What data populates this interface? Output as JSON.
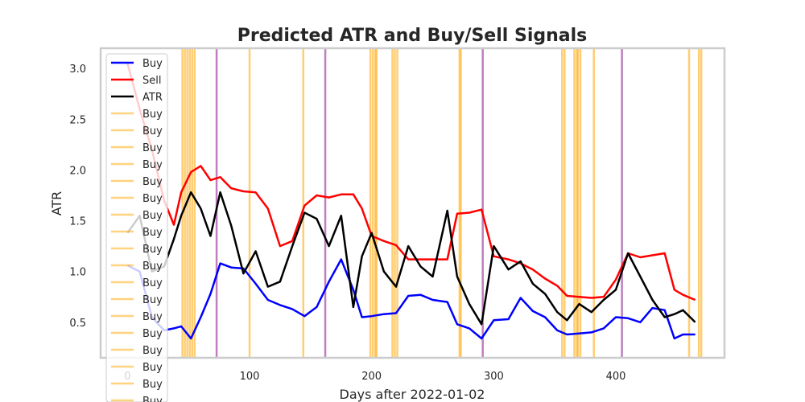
{
  "chart_data": {
    "type": "line",
    "title": "Predicted ATR and Buy/Sell Signals",
    "xlabel": "Days after 2022-01-02",
    "ylabel": "ATR",
    "xlim": [
      -22,
      489
    ],
    "ylim": [
      0.15,
      3.2
    ],
    "x_ticks": [
      0,
      100,
      200,
      300,
      400
    ],
    "y_ticks": [
      0.5,
      1.0,
      1.5,
      2.0,
      2.5,
      3.0
    ],
    "x_tick_labels": [
      "0",
      "100",
      "200",
      "300",
      "400"
    ],
    "y_tick_labels": [
      "0.5",
      "1.0",
      "1.5",
      "2.0",
      "2.5",
      "3.0"
    ],
    "grid": false,
    "legend_position": "upper-left",
    "series": [
      {
        "name": "Buy",
        "color": "#0000ff",
        "x": [
          0,
          10,
          20,
          30,
          38,
          44,
          52,
          60,
          68,
          76,
          85,
          95,
          105,
          115,
          125,
          135,
          145,
          155,
          165,
          175,
          185,
          192,
          200,
          210,
          220,
          230,
          240,
          250,
          262,
          270,
          280,
          290,
          300,
          312,
          322,
          332,
          342,
          352,
          360,
          370,
          380,
          390,
          400,
          410,
          420,
          430,
          440,
          448,
          455,
          465
        ],
        "y": [
          1.06,
          1.0,
          0.55,
          0.42,
          0.44,
          0.46,
          0.34,
          0.55,
          0.78,
          1.08,
          1.04,
          1.03,
          0.88,
          0.72,
          0.67,
          0.63,
          0.56,
          0.65,
          0.9,
          1.12,
          0.82,
          0.55,
          0.56,
          0.58,
          0.59,
          0.76,
          0.77,
          0.72,
          0.7,
          0.48,
          0.44,
          0.34,
          0.52,
          0.53,
          0.74,
          0.61,
          0.55,
          0.42,
          0.38,
          0.39,
          0.4,
          0.44,
          0.55,
          0.54,
          0.5,
          0.64,
          0.62,
          0.34,
          0.38,
          0.38
        ]
      },
      {
        "name": "Sell",
        "color": "#ff0000",
        "x": [
          0,
          10,
          20,
          30,
          38,
          44,
          52,
          60,
          68,
          76,
          85,
          95,
          105,
          115,
          125,
          135,
          145,
          155,
          165,
          175,
          185,
          192,
          200,
          210,
          220,
          230,
          240,
          250,
          262,
          270,
          280,
          290,
          300,
          312,
          322,
          332,
          342,
          352,
          360,
          370,
          380,
          390,
          400,
          410,
          420,
          430,
          440,
          448,
          455,
          465
        ],
        "y": [
          3.05,
          2.6,
          2.2,
          1.7,
          1.46,
          1.78,
          1.98,
          2.04,
          1.9,
          1.93,
          1.82,
          1.79,
          1.78,
          1.62,
          1.25,
          1.3,
          1.65,
          1.75,
          1.73,
          1.76,
          1.76,
          1.62,
          1.35,
          1.3,
          1.26,
          1.12,
          1.12,
          1.12,
          1.12,
          1.57,
          1.58,
          1.61,
          1.15,
          1.12,
          1.08,
          1.02,
          0.93,
          0.86,
          0.76,
          0.75,
          0.74,
          0.75,
          0.92,
          1.18,
          1.14,
          1.16,
          1.18,
          0.82,
          0.77,
          0.72
        ]
      },
      {
        "name": "ATR",
        "color": "#000000",
        "x": [
          0,
          10,
          20,
          30,
          38,
          44,
          52,
          60,
          68,
          76,
          85,
          95,
          105,
          115,
          125,
          135,
          145,
          155,
          165,
          175,
          185,
          192,
          200,
          210,
          220,
          230,
          240,
          250,
          262,
          270,
          280,
          290,
          300,
          312,
          322,
          332,
          342,
          352,
          360,
          370,
          380,
          390,
          400,
          410,
          420,
          430,
          440,
          448,
          455,
          465
        ],
        "y": [
          1.38,
          1.55,
          1.0,
          1.05,
          1.32,
          1.55,
          1.78,
          1.62,
          1.35,
          1.78,
          1.45,
          0.98,
          1.2,
          0.85,
          0.9,
          1.25,
          1.58,
          1.52,
          1.25,
          1.55,
          0.65,
          1.15,
          1.38,
          1.0,
          0.85,
          1.25,
          1.05,
          0.95,
          1.6,
          0.95,
          0.68,
          0.48,
          1.25,
          1.02,
          1.1,
          0.88,
          0.78,
          0.6,
          0.52,
          0.68,
          0.6,
          0.72,
          0.82,
          1.18,
          0.95,
          0.72,
          0.55,
          0.58,
          0.62,
          0.5
        ]
      }
    ],
    "signal_lines": {
      "buy": {
        "name": "Buy",
        "color": "#ffa500",
        "x": [
          45,
          47,
          49,
          51,
          53,
          55,
          100,
          144,
          199,
          201,
          203,
          204,
          217,
          219,
          221,
          272,
          273,
          356,
          358,
          366,
          368,
          369,
          371,
          382,
          460,
          468,
          470
        ]
      },
      "sell": {
        "name": "Sell",
        "color": "#800080",
        "x": [
          73,
          162,
          291,
          405
        ]
      }
    },
    "legend": [
      "Buy",
      "Sell",
      "ATR",
      "Buy",
      "Buy",
      "Buy",
      "Buy",
      "Buy",
      "Buy",
      "Buy",
      "Buy",
      "Buy",
      "Buy",
      "Buy",
      "Buy",
      "Buy",
      "Buy",
      "Buy",
      "Buy",
      "Buy",
      "Buy"
    ]
  }
}
